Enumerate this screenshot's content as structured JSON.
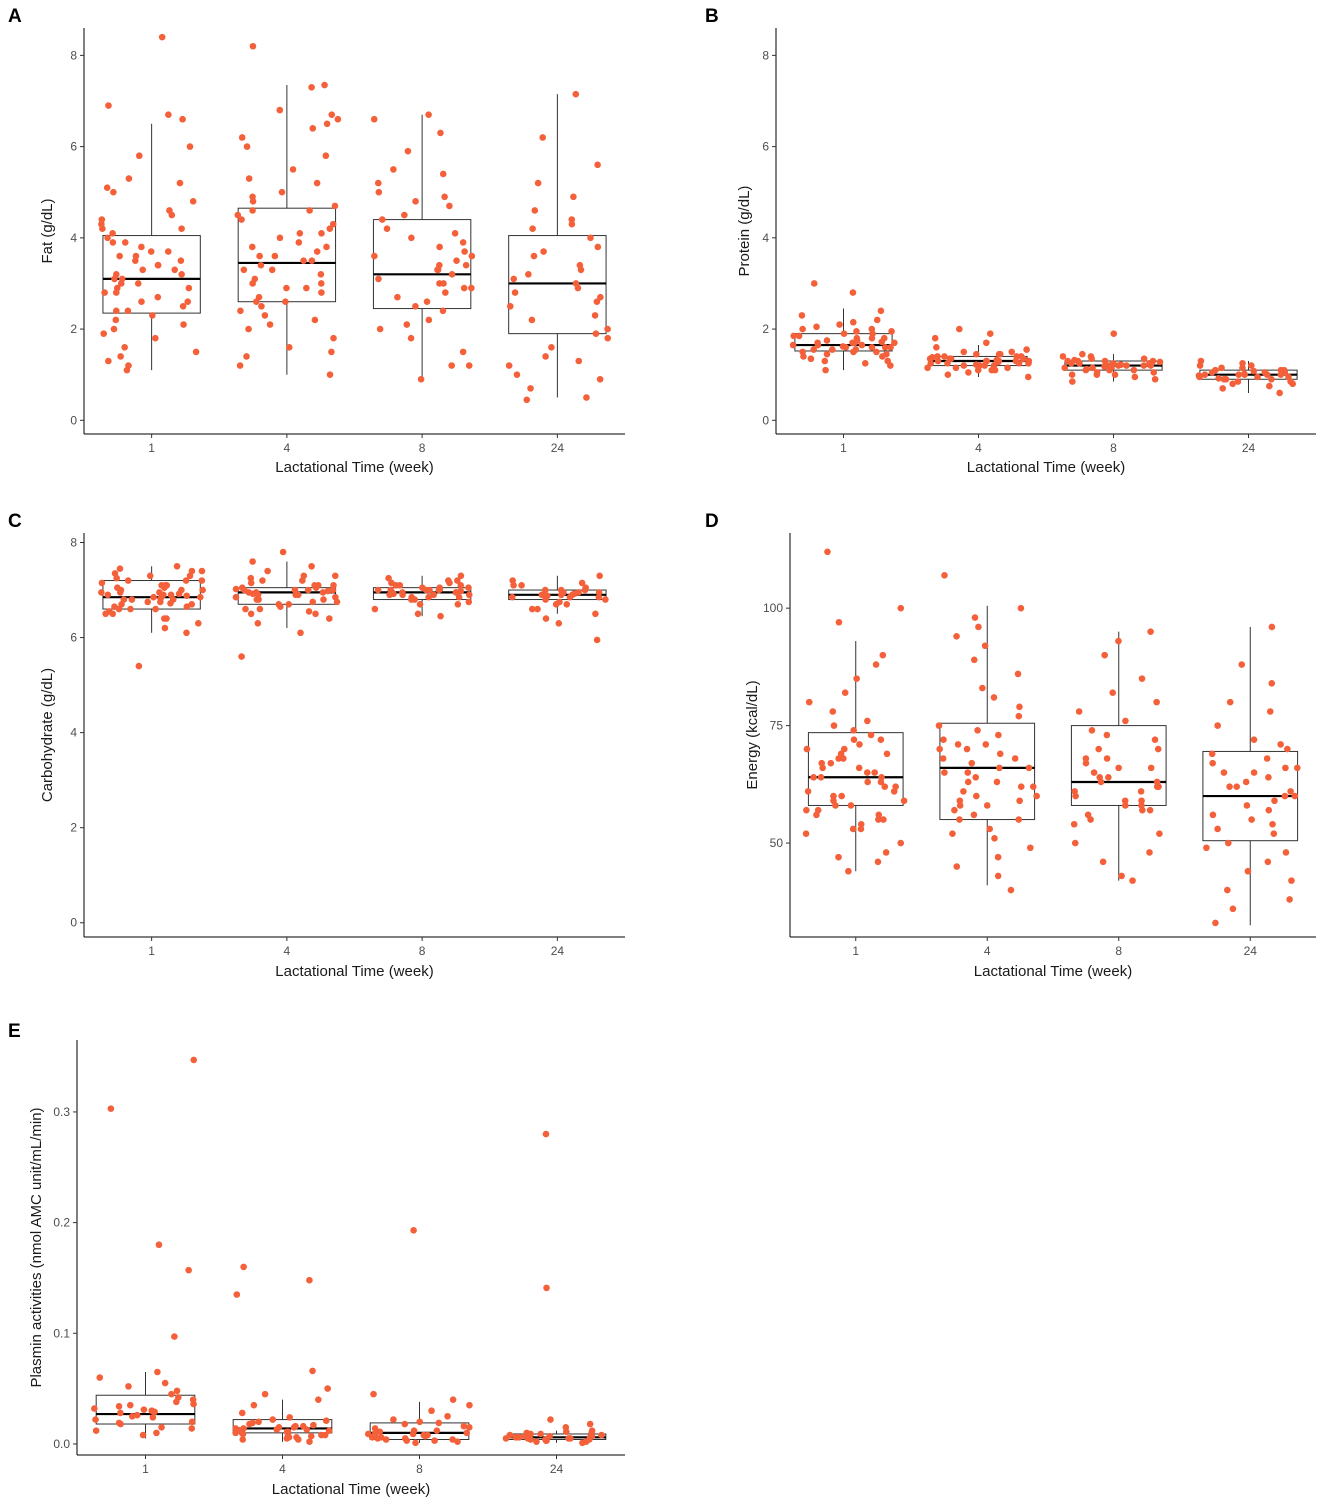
{
  "figure": {
    "point_color": "#f4603a",
    "box_stroke": "#333333",
    "axis_color": "#000000"
  },
  "chart_data": [
    {
      "id": "A",
      "panel_label": "A",
      "type": "boxplot",
      "xlabel": "Lactational Time (week)",
      "ylabel": "Fat (g/dL)",
      "categories": [
        "1",
        "4",
        "8",
        "24"
      ],
      "ylim": [
        -0.3,
        8.6
      ],
      "yticks": [
        0,
        2,
        4,
        6,
        8
      ],
      "ytick_labels": [
        "0",
        "2",
        "4",
        "6",
        "8"
      ],
      "boxes": [
        {
          "whisker_low": 1.1,
          "q1": 2.35,
          "median": 3.1,
          "q3": 4.05,
          "whisker_high": 6.5
        },
        {
          "whisker_low": 1.0,
          "q1": 2.6,
          "median": 3.45,
          "q3": 4.65,
          "whisker_high": 7.35
        },
        {
          "whisker_low": 0.9,
          "q1": 2.45,
          "median": 3.2,
          "q3": 4.4,
          "whisker_high": 6.7
        },
        {
          "whisker_low": 0.5,
          "q1": 1.9,
          "median": 3.0,
          "q3": 4.05,
          "whisker_high": 7.15
        }
      ],
      "points": [
        [
          1.2,
          1.3,
          1.6,
          1.1,
          1.9,
          2.2,
          2.4,
          2.3,
          2.6,
          2.8,
          2.5,
          2.9,
          3.0,
          3.1,
          3.2,
          3.3,
          3.4,
          3.5,
          3.6,
          3.7,
          2.7,
          3.1,
          3.3,
          3.0,
          3.8,
          3.9,
          4.1,
          4.2,
          4.3,
          4.4,
          3.5,
          4.0,
          2.1,
          1.4,
          1.8,
          2.0,
          4.5,
          4.8,
          5.0,
          5.2,
          5.3,
          5.8,
          6.0,
          6.6,
          6.7,
          6.9,
          8.4,
          2.6,
          3.6,
          2.9,
          3.2,
          3.4,
          4.2,
          2.4,
          1.5,
          3.7,
          2.8,
          3.9,
          4.6,
          5.1
        ],
        [
          1.0,
          1.2,
          1.4,
          1.6,
          1.8,
          2.0,
          2.2,
          2.4,
          2.5,
          2.6,
          2.7,
          2.8,
          2.9,
          3.0,
          3.1,
          3.2,
          3.3,
          3.4,
          3.5,
          3.6,
          3.7,
          3.8,
          3.9,
          4.0,
          4.1,
          4.2,
          4.3,
          4.4,
          4.5,
          4.6,
          4.7,
          4.8,
          5.0,
          5.2,
          5.5,
          5.8,
          6.0,
          6.2,
          6.4,
          6.5,
          6.6,
          6.7,
          6.8,
          7.3,
          7.35,
          8.2,
          2.3,
          3.5,
          2.9,
          4.1,
          3.3,
          1.5,
          2.1,
          3.8,
          4.6,
          2.6,
          3.0,
          5.3,
          4.9,
          3.6
        ],
        [
          0.9,
          1.2,
          1.5,
          1.8,
          2.0,
          2.2,
          2.4,
          2.6,
          2.7,
          2.8,
          2.9,
          3.0,
          3.1,
          3.2,
          3.3,
          3.4,
          3.5,
          3.6,
          3.7,
          3.8,
          3.9,
          4.0,
          4.2,
          4.4,
          4.5,
          4.7,
          4.9,
          5.0,
          5.2,
          5.4,
          5.5,
          5.9,
          6.3,
          6.6,
          6.7,
          2.5,
          3.3,
          2.9,
          3.6,
          4.1,
          1.2,
          2.1,
          3.0,
          3.4,
          4.8
        ],
        [
          0.45,
          0.5,
          0.7,
          0.9,
          1.0,
          1.2,
          1.4,
          1.6,
          1.8,
          2.0,
          2.2,
          2.3,
          2.5,
          2.7,
          2.9,
          3.0,
          3.2,
          3.4,
          3.6,
          3.8,
          4.0,
          4.2,
          4.4,
          4.6,
          4.9,
          5.2,
          5.6,
          6.2,
          7.15,
          3.3,
          2.8,
          1.9,
          3.7,
          4.3,
          2.6,
          1.3,
          3.1
        ]
      ]
    },
    {
      "id": "B",
      "panel_label": "B",
      "type": "boxplot",
      "xlabel": "Lactational Time (week)",
      "ylabel": "Protein (g/dL)",
      "categories": [
        "1",
        "4",
        "8",
        "24"
      ],
      "ylim": [
        -0.3,
        8.6
      ],
      "yticks": [
        0,
        2,
        4,
        6,
        8
      ],
      "ytick_labels": [
        "0",
        "2",
        "4",
        "6",
        "8"
      ],
      "boxes": [
        {
          "whisker_low": 1.1,
          "q1": 1.52,
          "median": 1.65,
          "q3": 1.9,
          "whisker_high": 2.45
        },
        {
          "whisker_low": 0.95,
          "q1": 1.2,
          "median": 1.3,
          "q3": 1.4,
          "whisker_high": 1.65
        },
        {
          "whisker_low": 0.85,
          "q1": 1.1,
          "median": 1.2,
          "q3": 1.3,
          "whisker_high": 1.45
        },
        {
          "whisker_low": 0.6,
          "q1": 0.9,
          "median": 1.0,
          "q3": 1.1,
          "whisker_high": 1.3
        }
      ],
      "points": [
        [
          1.1,
          1.2,
          1.3,
          1.4,
          1.45,
          1.5,
          1.55,
          1.6,
          1.62,
          1.65,
          1.7,
          1.72,
          1.75,
          1.8,
          1.85,
          1.9,
          1.95,
          2.0,
          2.1,
          2.2,
          2.3,
          2.4,
          3.0,
          1.5,
          1.6,
          1.7,
          1.8,
          1.9,
          2.0,
          1.4,
          1.3,
          1.55,
          1.65,
          1.75,
          2.8,
          1.85,
          1.6,
          1.7,
          1.5,
          1.95,
          2.05,
          1.45,
          1.35,
          1.25,
          1.8,
          1.6,
          1.7,
          2.15,
          1.55,
          1.65
        ],
        [
          0.95,
          1.0,
          1.05,
          1.1,
          1.15,
          1.2,
          1.22,
          1.25,
          1.28,
          1.3,
          1.32,
          1.35,
          1.38,
          1.4,
          1.45,
          1.5,
          1.55,
          1.6,
          1.7,
          1.8,
          1.9,
          2.0,
          1.2,
          1.3,
          1.4,
          1.25,
          1.35,
          1.15,
          1.45,
          1.3,
          1.1,
          1.2,
          1.4,
          1.5,
          1.25,
          1.35,
          1.3,
          1.2,
          1.1,
          1.45,
          1.3,
          1.35,
          1.25,
          1.15,
          1.4,
          1.3
        ],
        [
          0.85,
          0.9,
          0.95,
          1.0,
          1.05,
          1.1,
          1.12,
          1.15,
          1.18,
          1.2,
          1.22,
          1.25,
          1.28,
          1.3,
          1.32,
          1.35,
          1.4,
          1.45,
          1.9,
          1.2,
          1.1,
          1.3,
          1.15,
          1.25,
          1.0,
          1.2,
          1.35,
          1.05,
          1.25,
          1.15,
          1.3,
          1.2,
          1.1,
          1.4,
          1.25,
          1.0,
          1.2,
          1.3
        ],
        [
          0.6,
          0.7,
          0.75,
          0.8,
          0.85,
          0.9,
          0.92,
          0.95,
          0.98,
          1.0,
          1.02,
          1.05,
          1.08,
          1.1,
          1.15,
          1.2,
          1.25,
          1.3,
          0.9,
          1.0,
          1.1,
          0.95,
          1.05,
          0.85,
          1.0,
          1.15,
          0.9,
          1.05,
          1.2,
          0.95,
          1.0,
          1.1,
          0.8,
          1.0
        ]
      ]
    },
    {
      "id": "C",
      "panel_label": "C",
      "type": "boxplot",
      "xlabel": "Lactational Time (week)",
      "ylabel": "Carbohydrate (g/dL)",
      "categories": [
        "1",
        "4",
        "8",
        "24"
      ],
      "ylim": [
        -0.3,
        8.2
      ],
      "yticks": [
        0,
        2,
        4,
        6,
        8
      ],
      "ytick_labels": [
        "0",
        "2",
        "4",
        "6",
        "8"
      ],
      "boxes": [
        {
          "whisker_low": 6.1,
          "q1": 6.6,
          "median": 6.85,
          "q3": 7.2,
          "whisker_high": 7.5
        },
        {
          "whisker_low": 6.2,
          "q1": 6.7,
          "median": 6.95,
          "q3": 7.05,
          "whisker_high": 7.6
        },
        {
          "whisker_low": 6.45,
          "q1": 6.8,
          "median": 6.95,
          "q3": 7.05,
          "whisker_high": 7.3
        },
        {
          "whisker_low": 6.5,
          "q1": 6.8,
          "median": 6.9,
          "q3": 7.0,
          "whisker_high": 7.3
        }
      ],
      "points": [
        [
          5.4,
          6.1,
          6.2,
          6.3,
          6.4,
          6.5,
          6.55,
          6.6,
          6.65,
          6.7,
          6.72,
          6.75,
          6.8,
          6.82,
          6.85,
          6.88,
          6.9,
          6.92,
          6.95,
          7.0,
          7.05,
          7.1,
          7.15,
          7.2,
          7.25,
          7.3,
          7.35,
          7.4,
          7.45,
          7.5,
          6.6,
          6.8,
          7.0,
          6.9,
          7.1,
          6.7,
          6.5,
          7.2,
          6.85,
          7.05,
          6.95,
          6.75,
          7.3,
          6.4,
          7.4,
          6.65,
          6.9,
          7.0,
          6.8,
          7.1,
          6.6,
          7.2,
          6.95
        ],
        [
          5.6,
          6.1,
          6.3,
          6.4,
          6.5,
          6.55,
          6.6,
          6.65,
          6.7,
          6.75,
          6.8,
          6.85,
          6.9,
          6.92,
          6.95,
          6.98,
          7.0,
          7.02,
          7.05,
          7.1,
          7.15,
          7.2,
          7.25,
          7.3,
          7.4,
          7.5,
          7.6,
          7.8,
          6.8,
          7.0,
          6.9,
          7.1,
          6.7,
          6.95,
          7.05,
          6.85,
          7.2,
          6.6,
          7.0,
          6.9,
          6.8,
          7.1,
          6.95,
          7.0,
          6.75,
          7.3,
          6.5
        ],
        [
          6.45,
          6.5,
          6.6,
          6.7,
          6.75,
          6.8,
          6.85,
          6.9,
          6.92,
          6.95,
          6.98,
          7.0,
          7.02,
          7.05,
          7.1,
          7.15,
          7.2,
          7.25,
          7.3,
          6.9,
          7.0,
          6.95,
          7.05,
          6.85,
          7.1,
          6.8,
          7.0,
          6.9,
          7.15,
          6.95,
          7.0,
          6.7,
          7.2,
          6.9,
          7.05,
          6.85,
          7.0,
          6.95,
          7.1
        ],
        [
          5.95,
          6.3,
          6.4,
          6.5,
          6.6,
          6.7,
          6.75,
          6.8,
          6.85,
          6.88,
          6.9,
          6.92,
          6.95,
          7.0,
          7.05,
          7.1,
          7.15,
          7.2,
          7.3,
          6.9,
          6.85,
          6.95,
          6.8,
          7.0,
          6.9,
          6.7,
          7.1,
          6.85,
          6.95,
          6.9,
          6.6,
          7.0
        ]
      ]
    },
    {
      "id": "D",
      "panel_label": "D",
      "type": "boxplot",
      "xlabel": "Lactational Time (week)",
      "ylabel": "Energy (kcal/dL)",
      "categories": [
        "1",
        "4",
        "8",
        "24"
      ],
      "ylim": [
        30,
        116
      ],
      "yticks": [
        50,
        75,
        100
      ],
      "ytick_labels": [
        "50",
        "75",
        "100"
      ],
      "boxes": [
        {
          "whisker_low": 44,
          "q1": 58,
          "median": 64,
          "q3": 73.5,
          "whisker_high": 93
        },
        {
          "whisker_low": 41,
          "q1": 55,
          "median": 66,
          "q3": 75.5,
          "whisker_high": 100.5
        },
        {
          "whisker_low": 42,
          "q1": 58,
          "median": 63,
          "q3": 75,
          "whisker_high": 95
        },
        {
          "whisker_low": 32.5,
          "q1": 50.5,
          "median": 60,
          "q3": 69.5,
          "whisker_high": 96
        }
      ],
      "points": [
        [
          44,
          46,
          47,
          48,
          50,
          52,
          53,
          54,
          55,
          56,
          57,
          58,
          59,
          60,
          61,
          62,
          63,
          64,
          65,
          66,
          67,
          68,
          69,
          70,
          71,
          72,
          73,
          74,
          75,
          76,
          78,
          80,
          82,
          85,
          88,
          90,
          97,
          100,
          112,
          60,
          64,
          57,
          62,
          66,
          70,
          55,
          63,
          59,
          67,
          61,
          68,
          53,
          65,
          58,
          72,
          64,
          69,
          56
        ],
        [
          40,
          43,
          45,
          47,
          49,
          51,
          53,
          55,
          56,
          57,
          58,
          59,
          60,
          61,
          62,
          63,
          64,
          65,
          66,
          67,
          68,
          69,
          70,
          71,
          72,
          73,
          75,
          77,
          79,
          81,
          83,
          86,
          89,
          92,
          94,
          96,
          98,
          100,
          107,
          63,
          66,
          59,
          70,
          55,
          62,
          74,
          58,
          68,
          52,
          65,
          71,
          60
        ],
        [
          42,
          43,
          46,
          48,
          50,
          52,
          54,
          56,
          57,
          58,
          59,
          60,
          61,
          62,
          63,
          64,
          65,
          66,
          67,
          68,
          70,
          72,
          74,
          76,
          78,
          80,
          82,
          85,
          90,
          93,
          95,
          63,
          59,
          66,
          61,
          70,
          55,
          64,
          58,
          68,
          62,
          73,
          57
        ],
        [
          33,
          36,
          38,
          40,
          42,
          44,
          46,
          48,
          50,
          52,
          54,
          55,
          56,
          58,
          59,
          60,
          61,
          62,
          63,
          64,
          65,
          66,
          67,
          68,
          69,
          70,
          71,
          72,
          75,
          78,
          80,
          84,
          88,
          96,
          57,
          62,
          53,
          65,
          60,
          49,
          66
        ]
      ]
    },
    {
      "id": "E",
      "panel_label": "E",
      "type": "boxplot",
      "xlabel": "Lactational Time (week)",
      "ylabel": "Plasmin activities (nmol AMC unit/mL/min)",
      "categories": [
        "1",
        "4",
        "8",
        "24"
      ],
      "ylim": [
        -0.01,
        0.365
      ],
      "yticks": [
        0.0,
        0.1,
        0.2,
        0.3
      ],
      "ytick_labels": [
        "0.0",
        "0.1",
        "0.2",
        "0.3"
      ],
      "boxes": [
        {
          "whisker_low": 0.005,
          "q1": 0.018,
          "median": 0.027,
          "q3": 0.044,
          "whisker_high": 0.065
        },
        {
          "whisker_low": 0.002,
          "q1": 0.01,
          "median": 0.014,
          "q3": 0.022,
          "whisker_high": 0.04
        },
        {
          "whisker_low": 0.001,
          "q1": 0.004,
          "median": 0.01,
          "q3": 0.019,
          "whisker_high": 0.038
        },
        {
          "whisker_low": 0.001,
          "q1": 0.004,
          "median": 0.006,
          "q3": 0.009,
          "whisker_high": 0.012
        }
      ],
      "points": [
        [
          0.008,
          0.01,
          0.012,
          0.015,
          0.018,
          0.02,
          0.022,
          0.024,
          0.026,
          0.028,
          0.03,
          0.032,
          0.034,
          0.036,
          0.038,
          0.04,
          0.042,
          0.045,
          0.048,
          0.052,
          0.055,
          0.06,
          0.065,
          0.097,
          0.157,
          0.18,
          0.303,
          0.347,
          0.025,
          0.031,
          0.019,
          0.035,
          0.029,
          0.014
        ],
        [
          0.002,
          0.004,
          0.005,
          0.006,
          0.008,
          0.009,
          0.01,
          0.011,
          0.012,
          0.013,
          0.014,
          0.015,
          0.016,
          0.018,
          0.02,
          0.022,
          0.024,
          0.028,
          0.035,
          0.04,
          0.045,
          0.05,
          0.066,
          0.135,
          0.148,
          0.16,
          0.012,
          0.017,
          0.008,
          0.021,
          0.014,
          0.01,
          0.006,
          0.019,
          0.011,
          0.016,
          0.007,
          0.013,
          0.009,
          0.015,
          0.004
        ],
        [
          0.001,
          0.002,
          0.003,
          0.004,
          0.005,
          0.006,
          0.007,
          0.008,
          0.009,
          0.01,
          0.011,
          0.012,
          0.014,
          0.016,
          0.018,
          0.02,
          0.022,
          0.025,
          0.03,
          0.035,
          0.04,
          0.045,
          0.193,
          0.008,
          0.012,
          0.005,
          0.015,
          0.003,
          0.01,
          0.006,
          0.019,
          0.009,
          0.004
        ],
        [
          0.001,
          0.002,
          0.003,
          0.004,
          0.005,
          0.006,
          0.007,
          0.008,
          0.009,
          0.01,
          0.011,
          0.012,
          0.015,
          0.018,
          0.022,
          0.141,
          0.28,
          0.005,
          0.007,
          0.004,
          0.006,
          0.008,
          0.003,
          0.009,
          0.005,
          0.006,
          0.004,
          0.007,
          0.002,
          0.005,
          0.01,
          0.006
        ]
      ]
    }
  ]
}
